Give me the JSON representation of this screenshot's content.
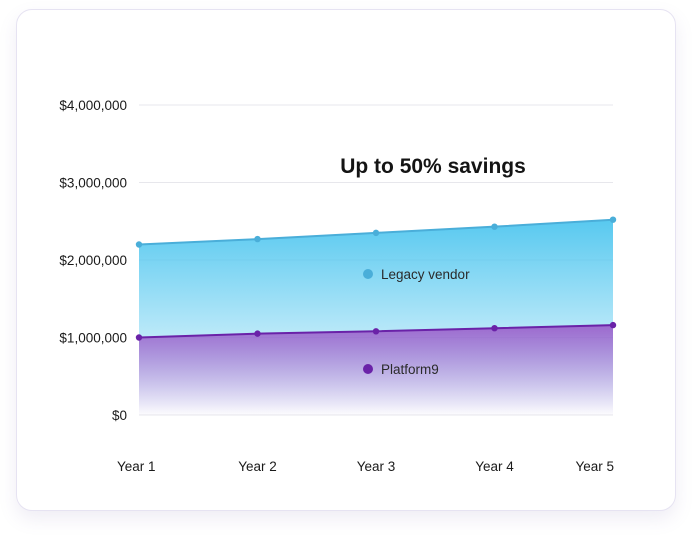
{
  "chart_data": {
    "type": "area",
    "title": "Up to 50% savings",
    "categories": [
      "Year 1",
      "Year 2",
      "Year 3",
      "Year 4",
      "Year 5"
    ],
    "y_ticks": [
      "$0",
      "$1,000,000",
      "$2,000,000",
      "$3,000,000",
      "$4,000,000"
    ],
    "ylim": [
      0,
      4000000
    ],
    "grid": true,
    "series": [
      {
        "name": "Legacy vendor",
        "values": [
          2200000,
          2270000,
          2350000,
          2430000,
          2520000
        ],
        "color": "#4aaed9",
        "fill": "#58c8ee"
      },
      {
        "name": "Platform9",
        "values": [
          1000000,
          1050000,
          1080000,
          1120000,
          1160000
        ],
        "color": "#6a22a8",
        "fill": "#a370cf"
      }
    ]
  }
}
